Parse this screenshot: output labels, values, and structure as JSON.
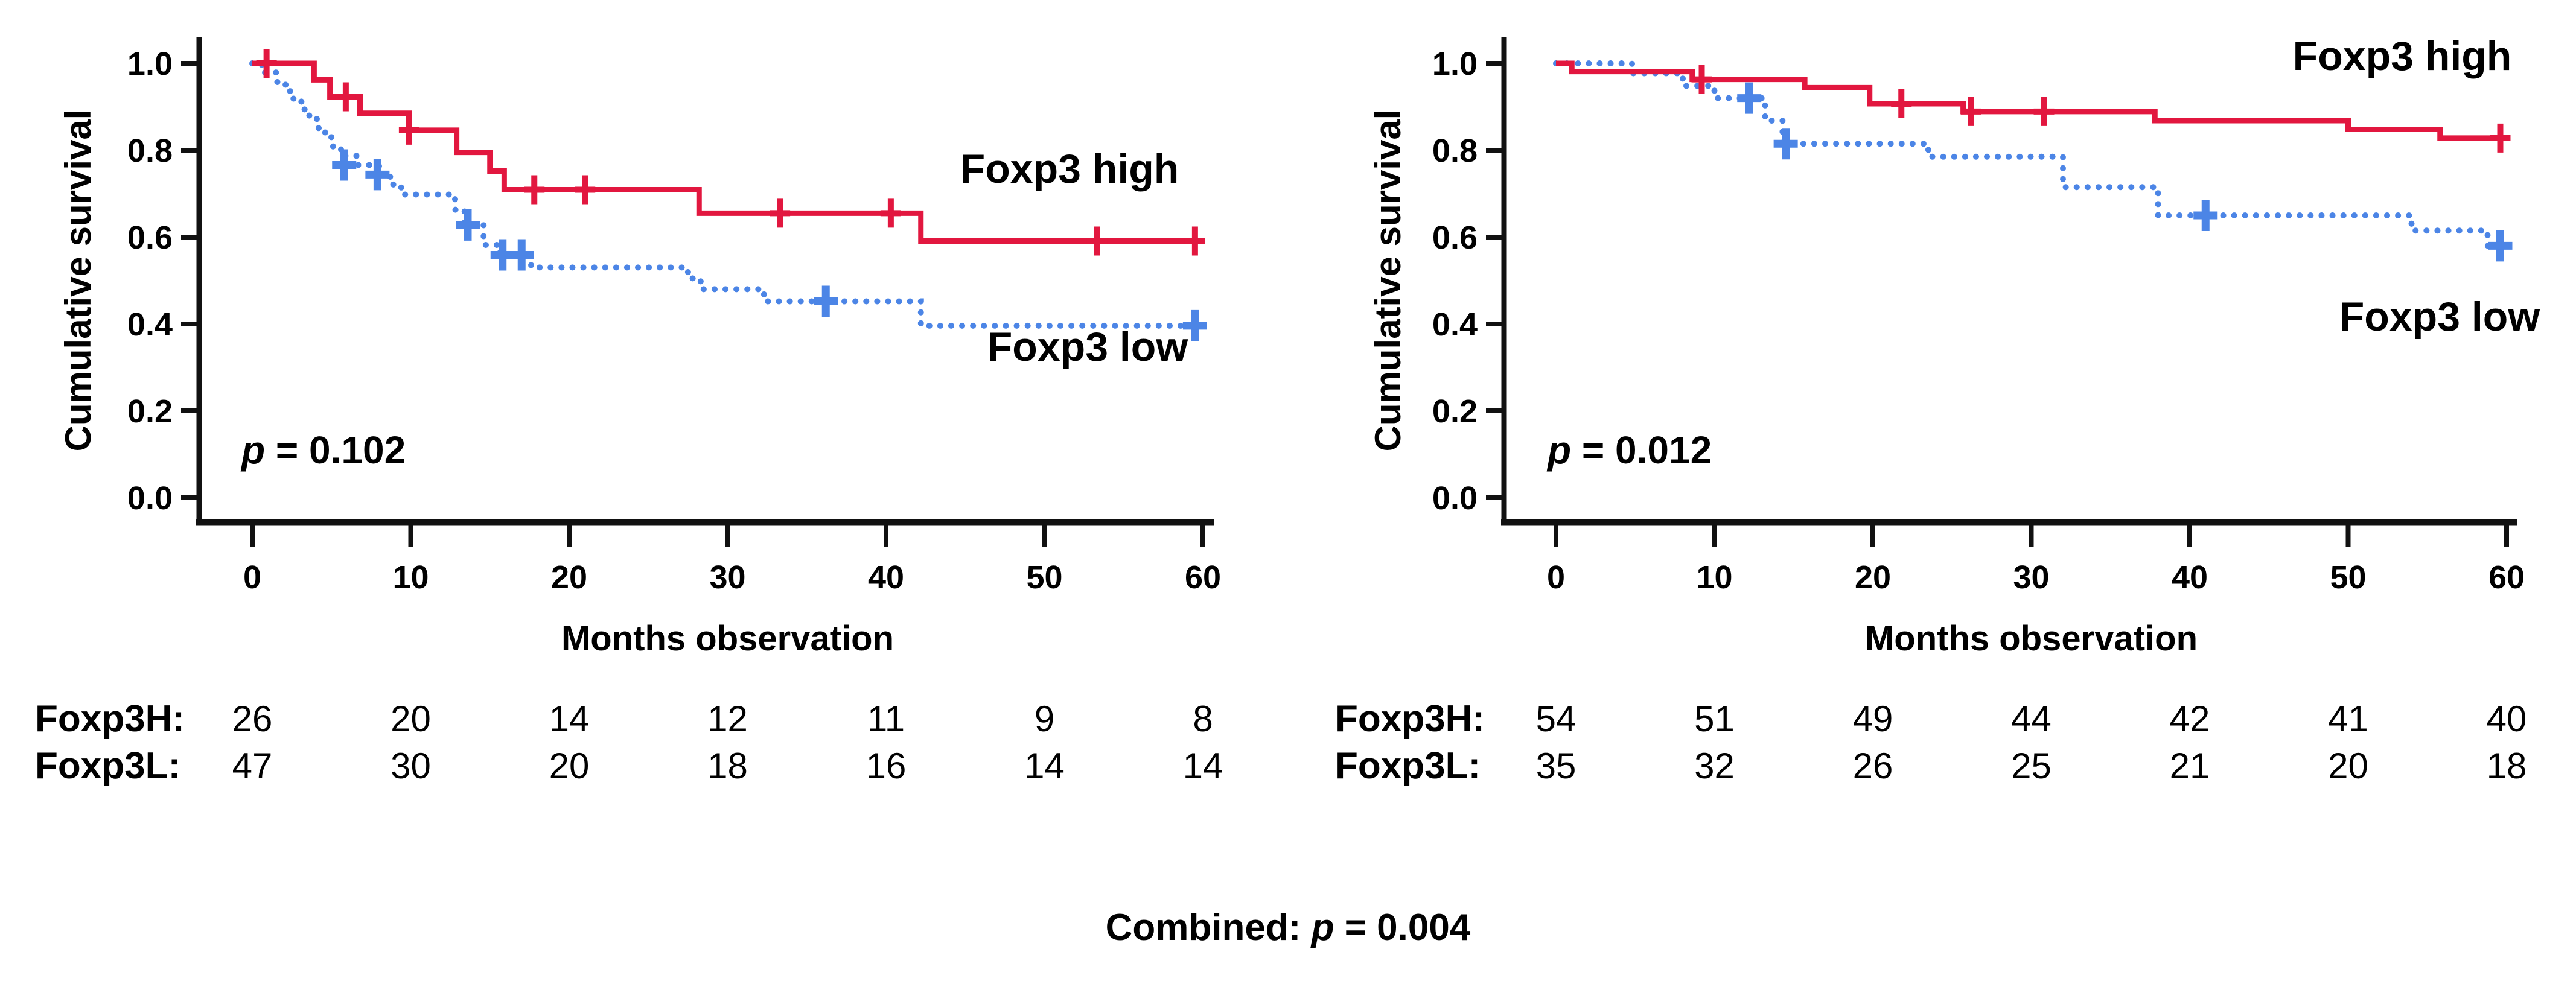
{
  "figure": {
    "background": "#ffffff",
    "combined": {
      "prefix": "Combined: ",
      "p_italic": "p",
      "p_rest": " = 0.004"
    }
  },
  "colors": {
    "foxp3_high": "#E2173F",
    "foxp3_low": "#4C85E6",
    "axis": "#111111",
    "text": "#000000"
  },
  "chart_data": [
    {
      "type": "line",
      "subtype": "kaplan-meier-step",
      "ylabel": "Cumulative survival",
      "xlabel": "Months observation",
      "xlim": [
        0,
        60
      ],
      "ylim": [
        0.0,
        1.0
      ],
      "xticks": [
        "0",
        "10",
        "20",
        "30",
        "40",
        "50",
        "60"
      ],
      "yticks": [
        "0.0",
        "0.2",
        "0.4",
        "0.6",
        "0.8",
        "1.0"
      ],
      "grid": false,
      "p_value": {
        "italic": "p",
        "rest": " = 0.102"
      },
      "series": [
        {
          "name": "Foxp3 low",
          "color": "#4C85E6",
          "line_style": "dotted",
          "steps": [
            [
              0,
              1.0
            ],
            [
              0.6,
              0.979
            ],
            [
              1.5,
              0.957
            ],
            [
              2.1,
              0.936
            ],
            [
              2.6,
              0.915
            ],
            [
              3.1,
              0.894
            ],
            [
              3.6,
              0.872
            ],
            [
              4.1,
              0.851
            ],
            [
              4.6,
              0.83
            ],
            [
              5.1,
              0.808
            ],
            [
              5.6,
              0.787
            ],
            [
              6.6,
              0.766
            ],
            [
              8.0,
              0.744
            ],
            [
              8.7,
              0.721
            ],
            [
              9.4,
              0.698
            ],
            [
              12.8,
              0.663
            ],
            [
              13.4,
              0.628
            ],
            [
              14.6,
              0.582
            ],
            [
              15.6,
              0.559
            ],
            [
              17.6,
              0.53
            ],
            [
              27.5,
              0.505
            ],
            [
              28.3,
              0.48
            ],
            [
              32.3,
              0.452
            ],
            [
              42.2,
              0.396
            ]
          ],
          "censors": [
            [
              5.8,
              0.766
            ],
            [
              7.9,
              0.744
            ],
            [
              13.6,
              0.628
            ],
            [
              15.8,
              0.559
            ],
            [
              17.0,
              0.559
            ],
            [
              36.2,
              0.452
            ],
            [
              59.5,
              0.396
            ]
          ]
        },
        {
          "name": "Foxp3 high",
          "color": "#E2173F",
          "line_style": "solid",
          "steps": [
            [
              0,
              1.0
            ],
            [
              3.9,
              0.962
            ],
            [
              4.9,
              0.923
            ],
            [
              6.8,
              0.885
            ],
            [
              9.9,
              0.846
            ],
            [
              12.9,
              0.795
            ],
            [
              15.0,
              0.752
            ],
            [
              15.9,
              0.709
            ],
            [
              28.2,
              0.655
            ],
            [
              42.2,
              0.591
            ]
          ],
          "censors": [
            [
              0.9,
              1.0
            ],
            [
              5.9,
              0.923
            ],
            [
              9.9,
              0.846
            ],
            [
              17.8,
              0.709
            ],
            [
              21.0,
              0.709
            ],
            [
              33.3,
              0.655
            ],
            [
              40.3,
              0.655
            ],
            [
              53.3,
              0.591
            ],
            [
              59.5,
              0.591
            ]
          ]
        }
      ],
      "at_risk": [
        {
          "label": "Foxp3H:",
          "values": [
            "26",
            "20",
            "14",
            "12",
            "11",
            "9",
            "8"
          ]
        },
        {
          "label": "Foxp3L:",
          "values": [
            "47",
            "30",
            "20",
            "18",
            "16",
            "14",
            "14"
          ]
        }
      ]
    },
    {
      "type": "line",
      "subtype": "kaplan-meier-step",
      "ylabel": "Cumulative survival",
      "xlabel": "Months observation",
      "xlim": [
        0,
        60
      ],
      "ylim": [
        0.0,
        1.0
      ],
      "xticks": [
        "0",
        "10",
        "20",
        "30",
        "40",
        "50",
        "60"
      ],
      "yticks": [
        "0.0",
        "0.2",
        "0.4",
        "0.6",
        "0.8",
        "1.0"
      ],
      "grid": false,
      "p_value": {
        "italic": "p",
        "rest": " = 0.012"
      },
      "series": [
        {
          "name": "Foxp3 low",
          "color": "#4C85E6",
          "line_style": "dotted",
          "steps": [
            [
              0,
              1.0
            ],
            [
              4.8,
              0.977
            ],
            [
              8.0,
              0.948
            ],
            [
              10.0,
              0.92
            ],
            [
              13.2,
              0.868
            ],
            [
              14.3,
              0.815
            ],
            [
              23.5,
              0.785
            ],
            [
              32.0,
              0.715
            ],
            [
              38.0,
              0.65
            ],
            [
              54.0,
              0.615
            ],
            [
              58.8,
              0.58
            ]
          ],
          "censors": [
            [
              12.2,
              0.92
            ],
            [
              14.5,
              0.815
            ],
            [
              41.0,
              0.65
            ],
            [
              59.6,
              0.58
            ]
          ]
        },
        {
          "name": "Foxp3 high",
          "color": "#E2173F",
          "line_style": "solid",
          "steps": [
            [
              0,
              1.0
            ],
            [
              1.0,
              0.981
            ],
            [
              8.6,
              0.963
            ],
            [
              15.7,
              0.944
            ],
            [
              19.8,
              0.907
            ],
            [
              25.7,
              0.889
            ],
            [
              37.8,
              0.868
            ],
            [
              50.0,
              0.848
            ],
            [
              55.8,
              0.828
            ]
          ],
          "censors": [
            [
              9.2,
              0.963
            ],
            [
              21.8,
              0.907
            ],
            [
              26.2,
              0.889
            ],
            [
              30.8,
              0.889
            ],
            [
              59.6,
              0.828
            ]
          ]
        }
      ],
      "at_risk": [
        {
          "label": "Foxp3H:",
          "values": [
            "54",
            "51",
            "49",
            "44",
            "42",
            "41",
            "40"
          ]
        },
        {
          "label": "Foxp3L:",
          "values": [
            "35",
            "32",
            "26",
            "25",
            "21",
            "20",
            "18"
          ]
        }
      ]
    }
  ]
}
